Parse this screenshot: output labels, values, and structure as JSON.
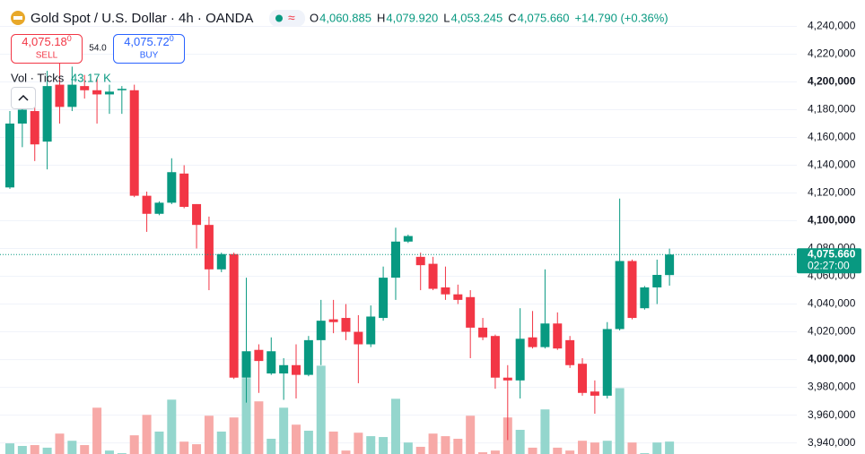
{
  "chart_data": {
    "type": "candlestick",
    "title": "Gold Spot / U.S. Dollar · 4h · OANDA",
    "ohlc_header": [
      {
        "label": "O",
        "value": "4,060.885"
      },
      {
        "label": "H",
        "value": "4,079.920"
      },
      {
        "label": "L",
        "value": "4,053.245"
      },
      {
        "label": "C",
        "value": "4,075.660"
      }
    ],
    "change": "+14.790 (+0.36%)",
    "sell": {
      "price": "4,075.18",
      "sup": "0",
      "label": "SELL"
    },
    "spread": "54.0",
    "buy": {
      "price": "4,075.72",
      "sup": "0",
      "label": "BUY"
    },
    "volume_title": "Vol · Ticks",
    "volume_label": "43.17 K",
    "price_tag": {
      "label": "4,075.660",
      "countdown": "02:27:00"
    },
    "up_color": "#089981",
    "down_color": "#f23645",
    "volume_up_color": "#94d6cd",
    "volume_down_color": "#f7a9a7",
    "ylim": [
      3932000,
      4259000
    ],
    "yticks": [
      {
        "value": 4240000,
        "label": "4,240,000"
      },
      {
        "value": 4220000,
        "label": "4,220,000"
      },
      {
        "value": 4200000,
        "label": "4,200,000"
      },
      {
        "value": 4180000,
        "label": "4,180,000"
      },
      {
        "value": 4160000,
        "label": "4,160,000"
      },
      {
        "value": 4140000,
        "label": "4,140,000"
      },
      {
        "value": 4120000,
        "label": "4,120,000"
      },
      {
        "value": 4100000,
        "label": "4,100,000"
      },
      {
        "value": 4080000,
        "label": "4,080,000"
      },
      {
        "value": 4060000,
        "label": "4,060,000"
      },
      {
        "value": 4040000,
        "label": "4,040,000"
      },
      {
        "value": 4020000,
        "label": "4,020,000"
      },
      {
        "value": 4000000,
        "label": "4,000,000"
      },
      {
        "value": 3980000,
        "label": "3,980,000"
      },
      {
        "value": 3960000,
        "label": "3,960,000"
      },
      {
        "value": 3940000,
        "label": "3,940,000"
      }
    ],
    "grid": true,
    "open": [
      4124000,
      4170000,
      4179000,
      4157000,
      4198000,
      4182000,
      4197000,
      4194000,
      4191000,
      4194000,
      4194000,
      4118000,
      4105000,
      4113000,
      4134000,
      4112000,
      4097000,
      4065000,
      4076000,
      3987000,
      4007000,
      3990000,
      3990000,
      3996000,
      3989000,
      4014000,
      4029000,
      4030000,
      4020000,
      4011000,
      4030000,
      4059000,
      4085000,
      4074000,
      4069000,
      4052000,
      4047000,
      4045000,
      4023000,
      4017000,
      3987000,
      3985000,
      4016000,
      4009000,
      4026000,
      4014000,
      3997000,
      3977000,
      3974000,
      4022000,
      4071000,
      4037000,
      4052000,
      4060885
    ],
    "high": [
      4179000,
      4188000,
      4195000,
      4208000,
      4214000,
      4211000,
      4205000,
      4203000,
      4198000,
      4197000,
      4198000,
      4121000,
      4114000,
      4145000,
      4140000,
      4112000,
      4103000,
      4077000,
      4077000,
      4059000,
      4011000,
      4016000,
      4001000,
      4011000,
      4017000,
      4043000,
      4043000,
      4040000,
      4032000,
      4039000,
      4067000,
      4095000,
      4090000,
      4077000,
      4074000,
      4067000,
      4054000,
      4050000,
      4030000,
      4018000,
      3996000,
      4037000,
      4035000,
      4065000,
      4034000,
      4017000,
      4001000,
      3985000,
      4027000,
      4116000,
      4072000,
      4053000,
      4072000,
      4079920
    ],
    "low": [
      4123000,
      4153000,
      4143000,
      4137000,
      4170000,
      4179000,
      4188000,
      4170000,
      4177000,
      4177000,
      4117000,
      4092000,
      4104000,
      4112000,
      4109000,
      4080000,
      4050000,
      4063000,
      3986000,
      3969000,
      3976000,
      3989000,
      3971000,
      3972000,
      3988000,
      3996000,
      4019000,
      4014000,
      3983000,
      4009000,
      4028000,
      4043000,
      4084000,
      4050000,
      4050000,
      4043000,
      4040000,
      4001000,
      4014000,
      3979000,
      3942000,
      3972000,
      4008000,
      4008000,
      4007000,
      3994000,
      3974000,
      3961000,
      3972000,
      4021000,
      4029000,
      4036000,
      4040000,
      4053245
    ],
    "close": [
      4170000,
      4180000,
      4155000,
      4197000,
      4182000,
      4198000,
      4194000,
      4191000,
      4193000,
      4195000,
      4118000,
      4105000,
      4113000,
      4135000,
      4110000,
      4097000,
      4065000,
      4076000,
      3987000,
      4006000,
      3999000,
      4006000,
      3996000,
      3989000,
      4014000,
      4028000,
      4027000,
      4020000,
      4011000,
      4031000,
      4059000,
      4085000,
      4089000,
      4068000,
      4051000,
      4047000,
      4043000,
      4023000,
      4016000,
      3987000,
      3985000,
      4015000,
      4009000,
      4026000,
      4008000,
      3996000,
      3976000,
      3974000,
      4022000,
      4071000,
      4030000,
      4052000,
      4061000,
      4075660
    ],
    "volume": [
      37,
      28,
      31,
      22,
      71,
      46,
      31,
      161,
      12,
      3,
      65,
      136,
      78,
      189,
      43,
      34,
      133,
      78,
      127,
      264,
      183,
      53,
      161,
      102,
      81,
      307,
      78,
      12,
      74,
      62,
      59,
      192,
      40,
      25,
      71,
      62,
      53,
      133,
      6,
      12,
      127,
      84,
      22,
      155,
      22,
      12,
      46,
      40,
      46,
      229,
      40,
      3,
      40,
      43.17
    ],
    "vlim": [
      0,
      330
    ]
  }
}
